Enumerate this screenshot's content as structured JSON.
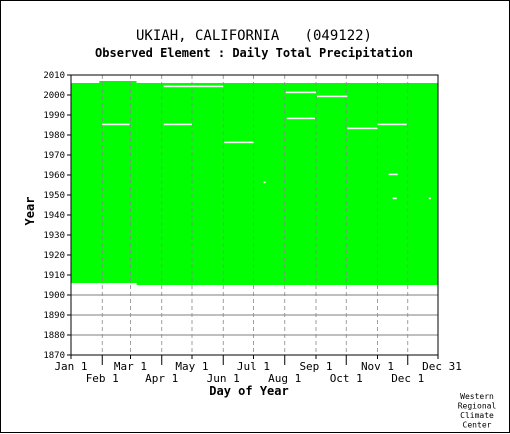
{
  "chart_data": {
    "type": "area",
    "title": "UKIAH, CALIFORNIA   (049122)",
    "subtitle": "Observed Element : Daily Total Precipitation",
    "xlabel": "Day of Year",
    "ylabel": "Year",
    "ylim": [
      1870,
      2010
    ],
    "yticks": [
      1870,
      1880,
      1890,
      1900,
      1910,
      1920,
      1930,
      1940,
      1950,
      1960,
      1970,
      1980,
      1990,
      2000,
      2010
    ],
    "xlim": [
      1,
      365
    ],
    "month_ticks": [
      {
        "label": "Jan 1",
        "day": 1,
        "row": 1
      },
      {
        "label": "Feb 1",
        "day": 32,
        "row": 2
      },
      {
        "label": "Mar 1",
        "day": 60,
        "row": 1
      },
      {
        "label": "Apr 1",
        "day": 91,
        "row": 2
      },
      {
        "label": "May 1",
        "day": 121,
        "row": 1
      },
      {
        "label": "Jun 1",
        "day": 152,
        "row": 2
      },
      {
        "label": "Jul 1",
        "day": 182,
        "row": 1
      },
      {
        "label": "Aug 1",
        "day": 213,
        "row": 2
      },
      {
        "label": "Sep 1",
        "day": 244,
        "row": 1
      },
      {
        "label": "Oct 1",
        "day": 274,
        "row": 2
      },
      {
        "label": "Nov 1",
        "day": 305,
        "row": 1
      },
      {
        "label": "Dec 1",
        "day": 335,
        "row": 2
      },
      {
        "label": "Dec 31",
        "day": 365,
        "row": 1
      }
    ],
    "grid": true,
    "fill_color": "#00ff00",
    "coverage_segments": [
      {
        "day_start": 1,
        "day_end": 59,
        "year_start": 1906,
        "year_end": 2005
      },
      {
        "day_start": 29,
        "day_end": 66,
        "year_start": 1906,
        "year_end": 2006
      },
      {
        "day_start": 66,
        "day_end": 365,
        "year_start": 1905,
        "year_end": 2005
      }
    ],
    "missing_spans": [
      {
        "year": 1985,
        "day_start": 32,
        "day_end": 59
      },
      {
        "year": 1985,
        "day_start": 93,
        "day_end": 121
      },
      {
        "year": 2004,
        "day_start": 93,
        "day_end": 121
      },
      {
        "year": 2004,
        "day_start": 121,
        "day_end": 152
      },
      {
        "year": 1976,
        "day_start": 153,
        "day_end": 182
      },
      {
        "year": 1956,
        "day_start": 192,
        "day_end": 194
      },
      {
        "year": 2001,
        "day_start": 214,
        "day_end": 244
      },
      {
        "year": 1988,
        "day_start": 215,
        "day_end": 243
      },
      {
        "year": 1999,
        "day_start": 245,
        "day_end": 275
      },
      {
        "year": 1983,
        "day_start": 275,
        "day_end": 305
      },
      {
        "year": 1985,
        "day_start": 305,
        "day_end": 334
      },
      {
        "year": 1960,
        "day_start": 316,
        "day_end": 325
      },
      {
        "year": 1948,
        "day_start": 320,
        "day_end": 324
      },
      {
        "year": 1948,
        "day_start": 356,
        "day_end": 358
      }
    ],
    "credit": [
      "Western",
      "Regional",
      "Climate",
      "Center"
    ]
  }
}
